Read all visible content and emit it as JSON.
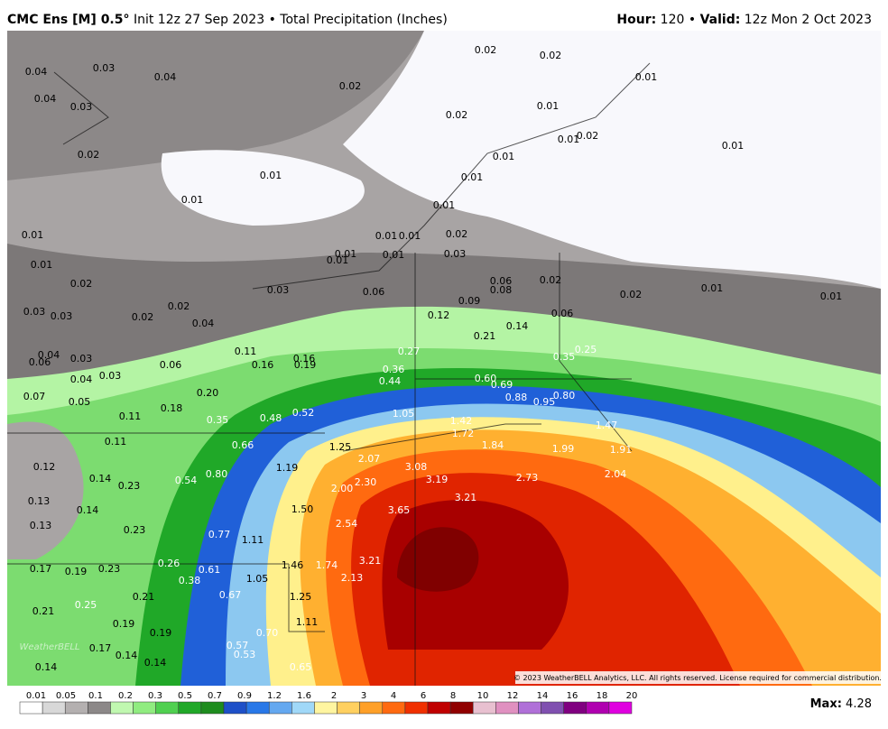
{
  "header": {
    "model": "CMC Ens [M] 0.5°",
    "description": " Init 12z 27 Sep 2023 • Total Precipitation (Inches)",
    "hour_label": "Hour:",
    "hour": " 120",
    "separator": " • ",
    "valid_label": "Valid:",
    "valid": " 12z Mon 2 Oct 2023"
  },
  "map": {
    "labels": [
      "0.04",
      "0.03",
      "0.04",
      "0.02",
      "0.02",
      "0.02",
      "0.01",
      "0.04",
      "0.03",
      "0.02",
      "0.01",
      "0.01",
      "0.02",
      "0.01",
      "0.02",
      "0.01",
      "0.01",
      "0.01",
      "0.01",
      "0.01",
      "0.01",
      "0.01",
      "0.01",
      "0.02",
      "0.01",
      "0.01",
      "0.01",
      "0.03",
      "0.01",
      "0.02",
      "0.03",
      "0.06",
      "0.06",
      "0.08",
      "0.02",
      "0.02",
      "0.01",
      "0.01",
      "0.03",
      "0.03",
      "0.02",
      "0.02",
      "0.04",
      "0.12",
      "0.09",
      "0.06",
      "0.14",
      "0.21",
      "0.04",
      "0.06",
      "0.03",
      "0.04",
      "0.03",
      "0.06",
      "0.11",
      "0.16",
      "0.16",
      "0.19",
      "0.27",
      "0.25",
      "0.35",
      "0.36",
      "0.44",
      "0.60",
      "0.69",
      "0.07",
      "0.05",
      "0.20",
      "0.18",
      "0.88",
      "0.95",
      "0.80",
      "0.11",
      "0.35",
      "0.48",
      "0.52",
      "1.05",
      "1.42",
      "1.72",
      "1.47",
      "0.11",
      "0.66",
      "1.25",
      "1.84",
      "1.99",
      "1.91",
      "0.12",
      "0.14",
      "0.23",
      "0.54",
      "0.80",
      "1.19",
      "2.07",
      "3.08",
      "3.19",
      "2.73",
      "2.04",
      "0.13",
      "0.14",
      "2.00",
      "2.30",
      "3.21",
      "1.50",
      "3.65",
      "2.54",
      "0.13",
      "0.23",
      "0.77",
      "1.11",
      "0.17",
      "0.19",
      "0.23",
      "0.26",
      "0.61",
      "1.46",
      "1.74",
      "3.21",
      "0.38",
      "1.05",
      "2.13",
      "0.25",
      "0.21",
      "0.67",
      "1.25",
      "0.21",
      "0.19",
      "0.19",
      "1.11",
      "0.70",
      "0.17",
      "0.57",
      "0.14",
      "0.53",
      "0.14",
      "0.14",
      "0.65"
    ],
    "logo": "WeatherBELL",
    "copyright": "© 2023 WeatherBELL Analytics, LLC. All rights reserved. License required for commercial distribution."
  },
  "colorbar": {
    "levels": [
      "0.01",
      "0.05",
      "0.1",
      "0.2",
      "0.3",
      "0.5",
      "0.7",
      "0.9",
      "1.2",
      "1.6",
      "2",
      "3",
      "4",
      "6",
      "8",
      "10",
      "12",
      "14",
      "16",
      "18",
      "20"
    ],
    "colors": [
      "#ffffff",
      "#d8d8d8",
      "#b4b0b0",
      "#8c8888",
      "#c0f8b0",
      "#90ec80",
      "#50d050",
      "#20a828",
      "#1e8c1e",
      "#1e50c8",
      "#2878e8",
      "#64a8f0",
      "#a0d8f8",
      "#fff5a0",
      "#ffd060",
      "#ffa028",
      "#ff6a10",
      "#f03000",
      "#c00000",
      "#900000",
      "#e8c0d0",
      "#e090c0",
      "#b070d8",
      "#8050b0",
      "#800080",
      "#b000b0",
      "#e000e0"
    ],
    "max_label": "Max:",
    "max": " 4.28"
  }
}
